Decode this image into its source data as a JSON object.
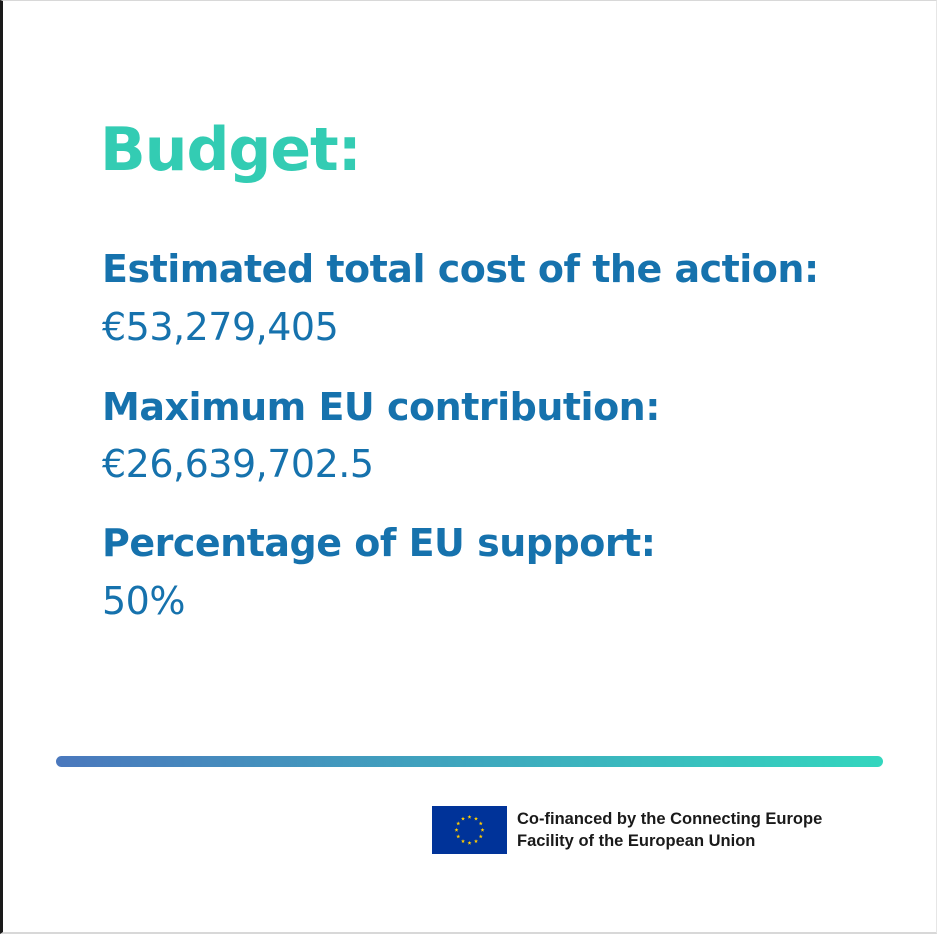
{
  "colors": {
    "title": "#33ccb3",
    "label": "#1672ad",
    "value": "#1672ad",
    "gradient_start": "#4a78bd",
    "gradient_end": "#33d6be",
    "flag_blue": "#003399",
    "flag_star": "#ffcc00"
  },
  "title": "Budget:",
  "items": [
    {
      "label": "Estimated total cost of the action:",
      "value": "€53,279,405"
    },
    {
      "label": "Maximum EU contribution:",
      "value": "€26,639,702.5"
    },
    {
      "label": "Percentage of EU support:",
      "value": "50%"
    }
  ],
  "footer": {
    "logo_icon": "eu-flag-icon",
    "line1": "Co-financed by the Connecting Europe",
    "line2": "Facility of the European Union"
  }
}
